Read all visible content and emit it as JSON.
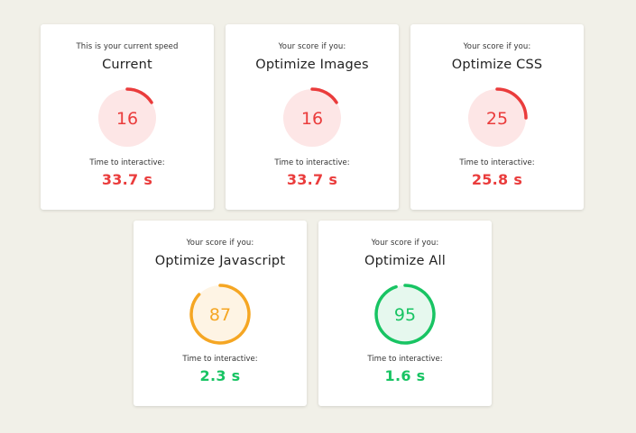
{
  "colors": {
    "background": "#f1f0e8",
    "red": "#ea3c3c",
    "red_fill": "#fde6e6",
    "orange": "#f5a623",
    "orange_fill": "#fef4e4",
    "green": "#18c463",
    "green_fill": "#e6f8ee"
  },
  "cards": [
    {
      "subtitle": "This is your current speed",
      "title": "Current",
      "score": "16",
      "score_fraction": 0.16,
      "status": "red",
      "tti_label": "Time to interactive:",
      "tti_value": "33.7 s"
    },
    {
      "subtitle": "Your score if you:",
      "title": "Optimize Images",
      "score": "16",
      "score_fraction": 0.16,
      "status": "red",
      "tti_label": "Time to interactive:",
      "tti_value": "33.7 s"
    },
    {
      "subtitle": "Your score if you:",
      "title": "Optimize CSS",
      "score": "25",
      "score_fraction": 0.25,
      "status": "red",
      "tti_label": "Time to interactive:",
      "tti_value": "25.8 s"
    },
    {
      "subtitle": "Your score if you:",
      "title": "Optimize Javascript",
      "score": "87",
      "score_fraction": 0.87,
      "status": "orange",
      "tti_label": "Time to interactive:",
      "tti_value": "2.3 s"
    },
    {
      "subtitle": "Your score if you:",
      "title": "Optimize All",
      "score": "95",
      "score_fraction": 0.95,
      "status": "green",
      "tti_label": "Time to interactive:",
      "tti_value": "1.6 s"
    }
  ]
}
